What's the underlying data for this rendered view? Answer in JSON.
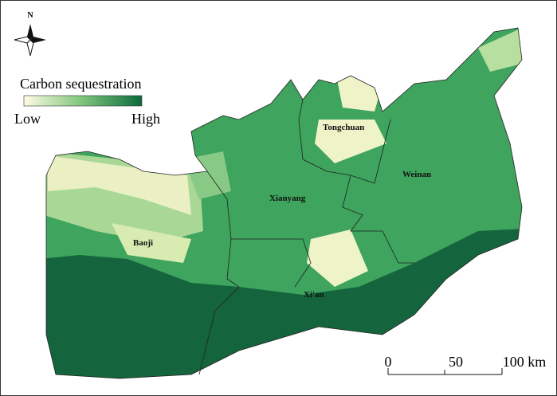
{
  "north_arrow": {
    "label": "N"
  },
  "legend": {
    "title": "Carbon sequestration",
    "low": "Low",
    "high": "High"
  },
  "regions": [
    {
      "label": "Tongchuan"
    },
    {
      "label": "Weinan"
    },
    {
      "label": "Xianyang"
    },
    {
      "label": "Baoji"
    },
    {
      "label": "Xi'an"
    }
  ],
  "scale_bar": {
    "labels": [
      "0",
      "50",
      "100 km"
    ]
  }
}
